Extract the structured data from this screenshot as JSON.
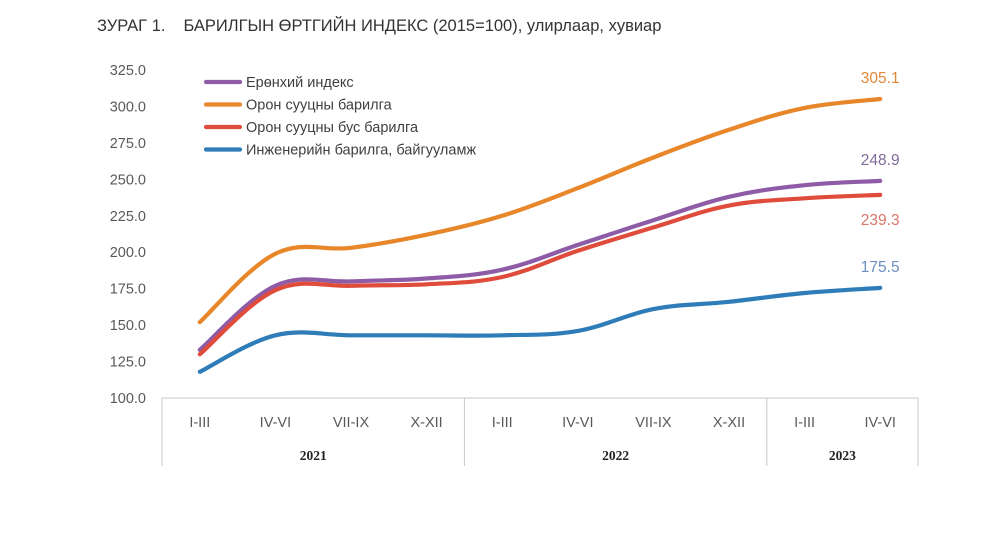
{
  "figure": {
    "number": "ЗУРАГ 1.",
    "title": "БАРИЛГЫН ӨРТГИЙН ИНДЕКС (2015=100), улирлаар, хувиар"
  },
  "chart_data": {
    "type": "line",
    "title": "БАРИЛГЫН ӨРТГИЙН ИНДЕКС (2015=100), улирлаар, хувиар",
    "xlabel": "",
    "ylabel": "",
    "ylim": [
      100,
      325
    ],
    "yticks": [
      "100.0",
      "125.0",
      "150.0",
      "175.0",
      "200.0",
      "225.0",
      "250.0",
      "275.0",
      "300.0",
      "325.0"
    ],
    "categories": [
      "I-III",
      "IV-VI",
      "VII-IX",
      "X-XII",
      "I-III",
      "IV-VI",
      "VII-IX",
      "X-XII",
      "I-III",
      "IV-VI"
    ],
    "year_groups": [
      {
        "label": "2021",
        "count": 4
      },
      {
        "label": "2022",
        "count": 4
      },
      {
        "label": "2023",
        "count": 2
      }
    ],
    "grid": false,
    "legend_position": "top-left",
    "series": [
      {
        "name": "Ерөнхий индекс",
        "color": "#8e5ba6",
        "values": [
          133,
          177,
          180,
          182,
          188,
          205,
          222,
          238,
          246,
          248.9
        ],
        "end_label": "248.9",
        "end_label_color": "#7f6a9a"
      },
      {
        "name": "Орон сууцны барилга",
        "color": "#e8862a",
        "values": [
          152,
          199,
          203,
          212,
          225,
          244,
          265,
          284,
          299,
          305.1
        ],
        "end_label": "305.1",
        "end_label_color": "#e0893a"
      },
      {
        "name": "Орон сууцны бус барилга",
        "color": "#e04c3c",
        "values": [
          130,
          174,
          177,
          178,
          183,
          201,
          217,
          232,
          237,
          239.3
        ],
        "end_label": "239.3",
        "end_label_color": "#d9756a"
      },
      {
        "name": "Инженерийн барилга, байгууламж",
        "color": "#2e7db8",
        "values": [
          118,
          143,
          143,
          143,
          143,
          146,
          161,
          166,
          172,
          175.5
        ],
        "end_label": "175.5",
        "end_label_color": "#6a8fc0"
      }
    ]
  }
}
